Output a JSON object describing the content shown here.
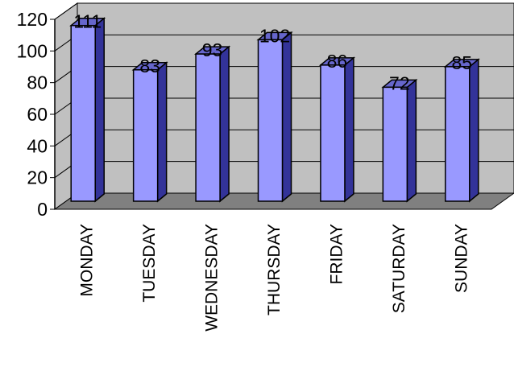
{
  "chart_data": {
    "type": "bar",
    "categories": [
      "MONDAY",
      "TUESDAY",
      "WEDNESDAY",
      "THURSDAY",
      "FRIDAY",
      "SATURDAY",
      "SUNDAY"
    ],
    "values": [
      111,
      83,
      93,
      102,
      86,
      72,
      85
    ],
    "ylim": [
      0,
      120
    ],
    "yticks": [
      0,
      20,
      40,
      60,
      80,
      100,
      120
    ],
    "grid": true,
    "legend": "none",
    "style": "3d-column",
    "colors": {
      "bar_front": "#9999FF",
      "bar_side": "#333399",
      "bar_top": "#6666CC",
      "wall": "#C0C0C0",
      "floor": "#808080",
      "gridline": "#000000"
    }
  }
}
